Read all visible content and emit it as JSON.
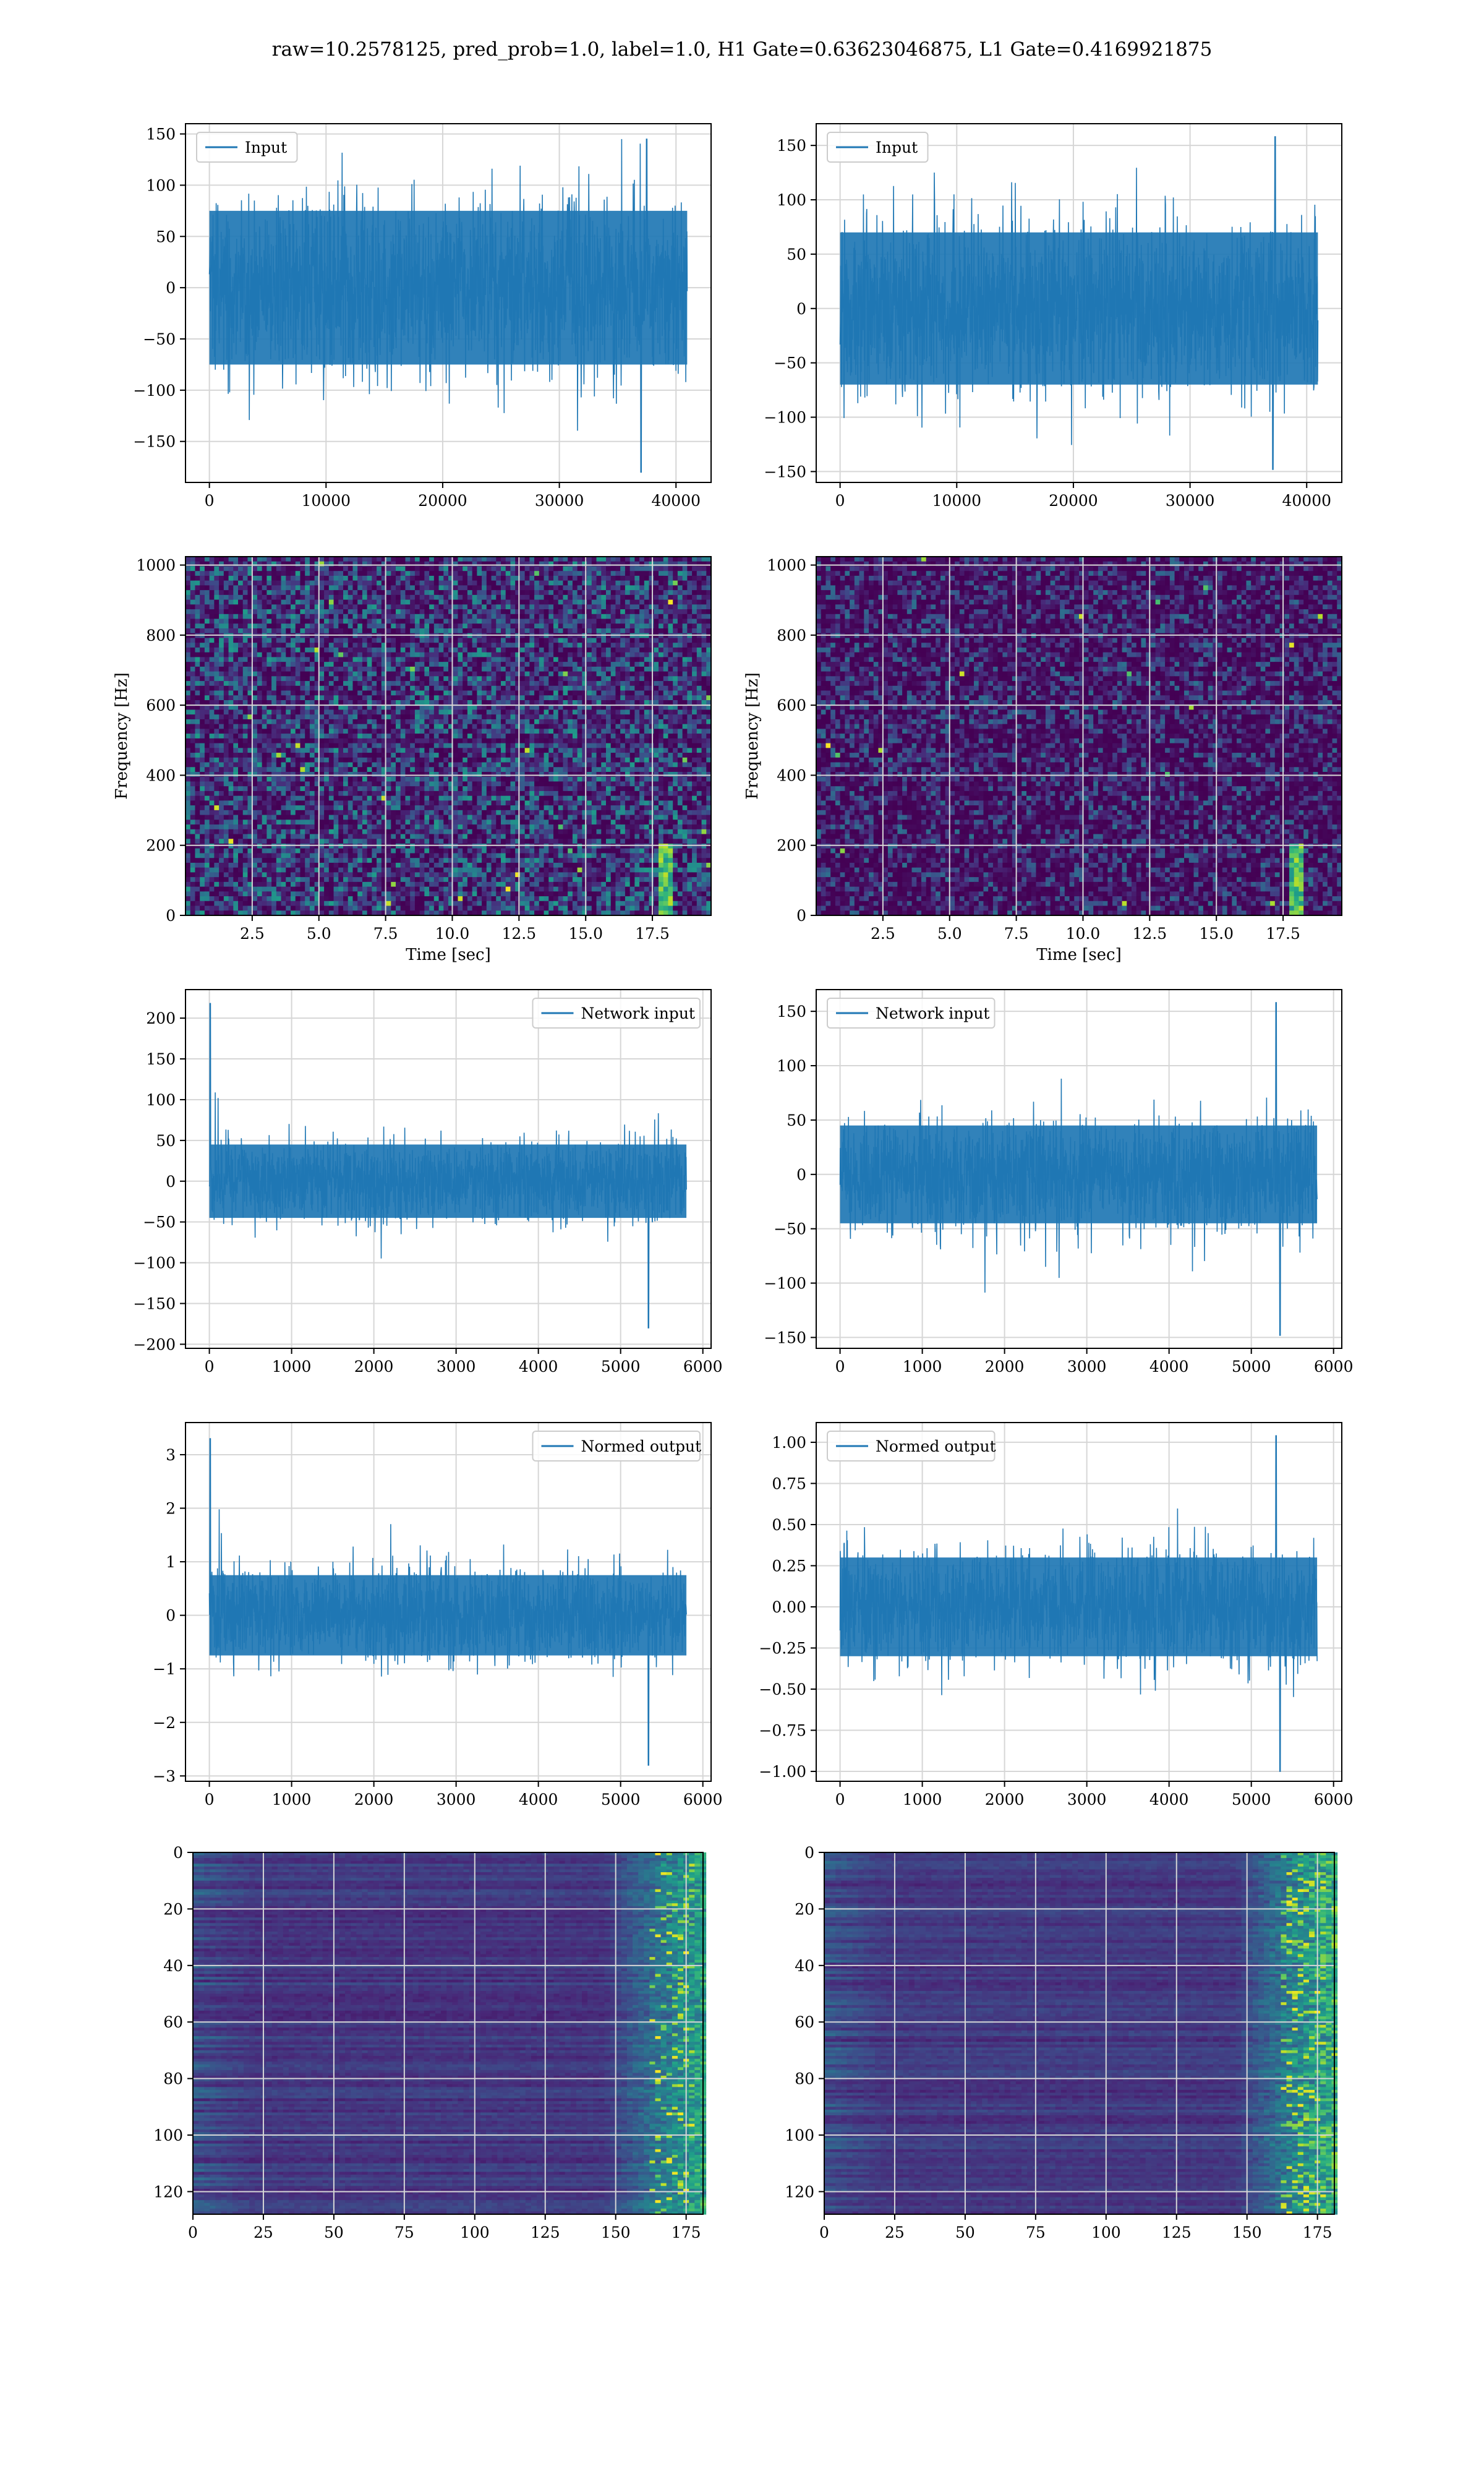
{
  "figure": {
    "title": "raw=10.2578125, pred_prob=1.0, label=1.0, H1 Gate=0.63623046875, L1 Gate=0.4169921875"
  },
  "colors": {
    "line": "#1f77b4",
    "grid": "#d6d6d6",
    "viridis_low": "#440154",
    "viridis_high": "#fde725"
  },
  "chart_data": [
    {
      "id": "h1-input",
      "type": "line",
      "legend": {
        "label": "Input",
        "loc": "upper-left"
      },
      "xlim": [
        -2048,
        43008
      ],
      "ylim": [
        -190,
        160
      ],
      "xticks": [
        0,
        10000,
        20000,
        30000,
        40000
      ],
      "yticks": [
        -150,
        -100,
        -50,
        0,
        50,
        100,
        150
      ],
      "xticklabels": [
        "0",
        "10000",
        "20000",
        "30000",
        "40000"
      ],
      "yticklabels": [
        "−150",
        "−100",
        "−50",
        "0",
        "50",
        "100",
        "150"
      ],
      "signal": {
        "x_start": 0,
        "x_end": 40960,
        "core_band": [
          -75,
          75
        ],
        "max": 145,
        "min": -180,
        "max_at": 37500,
        "min_at": 37000
      },
      "grid": true
    },
    {
      "id": "l1-input",
      "type": "line",
      "legend": {
        "label": "Input",
        "loc": "upper-left"
      },
      "xlim": [
        -2048,
        43008
      ],
      "ylim": [
        -160,
        170
      ],
      "xticks": [
        0,
        10000,
        20000,
        30000,
        40000
      ],
      "yticks": [
        -150,
        -100,
        -50,
        0,
        50,
        100,
        150
      ],
      "xticklabels": [
        "0",
        "10000",
        "20000",
        "30000",
        "40000"
      ],
      "yticklabels": [
        "−150",
        "−100",
        "−50",
        "0",
        "50",
        "100",
        "150"
      ],
      "signal": {
        "x_start": 0,
        "x_end": 40960,
        "core_band": [
          -70,
          70
        ],
        "max": 158,
        "min": -148,
        "max_at": 37300,
        "min_at": 37100
      },
      "grid": true
    },
    {
      "id": "h1-spectrogram",
      "type": "heatmap",
      "xlabel": "Time [sec]",
      "ylabel": "Frequency [Hz]",
      "xlim": [
        0,
        19.7
      ],
      "ylim": [
        0,
        1024
      ],
      "xticks": [
        2.5,
        5.0,
        7.5,
        10.0,
        12.5,
        15.0,
        17.5
      ],
      "yticks": [
        0,
        200,
        400,
        600,
        800,
        1000
      ],
      "xticklabels": [
        "2.5",
        "5.0",
        "7.5",
        "10.0",
        "12.5",
        "15.0",
        "17.5"
      ],
      "yticklabels": [
        "0",
        "200",
        "400",
        "600",
        "800",
        "1000"
      ],
      "colormap": "viridis",
      "grid": true
    },
    {
      "id": "l1-spectrogram",
      "type": "heatmap",
      "xlabel": "Time [sec]",
      "ylabel": "Frequency [Hz]",
      "xlim": [
        0,
        19.7
      ],
      "ylim": [
        0,
        1024
      ],
      "xticks": [
        2.5,
        5.0,
        7.5,
        10.0,
        12.5,
        15.0,
        17.5
      ],
      "yticks": [
        0,
        200,
        400,
        600,
        800,
        1000
      ],
      "xticklabels": [
        "2.5",
        "5.0",
        "7.5",
        "10.0",
        "12.5",
        "15.0",
        "17.5"
      ],
      "yticklabels": [
        "0",
        "200",
        "400",
        "600",
        "800",
        "1000"
      ],
      "colormap": "viridis",
      "grid": true
    },
    {
      "id": "h1-network-input",
      "type": "line",
      "legend": {
        "label": "Network input",
        "loc": "upper-right"
      },
      "xlim": [
        -290,
        6100
      ],
      "ylim": [
        -205,
        235
      ],
      "xticks": [
        0,
        1000,
        2000,
        3000,
        4000,
        5000,
        6000
      ],
      "yticks": [
        -200,
        -150,
        -100,
        -50,
        0,
        50,
        100,
        150,
        200
      ],
      "xticklabels": [
        "0",
        "1000",
        "2000",
        "3000",
        "4000",
        "5000",
        "6000"
      ],
      "yticklabels": [
        "−200",
        "−150",
        "−100",
        "−50",
        "0",
        "50",
        "100",
        "150",
        "200"
      ],
      "signal": {
        "x_start": 0,
        "x_end": 5800,
        "core_band": [
          -45,
          45
        ],
        "max": 218,
        "min": -180,
        "max_at": 10,
        "min_at": 5340
      },
      "grid": true
    },
    {
      "id": "l1-network-input",
      "type": "line",
      "legend": {
        "label": "Network input",
        "loc": "upper-left"
      },
      "xlim": [
        -290,
        6100
      ],
      "ylim": [
        -160,
        170
      ],
      "xticks": [
        0,
        1000,
        2000,
        3000,
        4000,
        5000,
        6000
      ],
      "yticks": [
        -150,
        -100,
        -50,
        0,
        50,
        100,
        150
      ],
      "xticklabels": [
        "0",
        "1000",
        "2000",
        "3000",
        "4000",
        "5000",
        "6000"
      ],
      "yticklabels": [
        "−150",
        "−100",
        "−50",
        "0",
        "50",
        "100",
        "150"
      ],
      "signal": {
        "x_start": 0,
        "x_end": 5800,
        "core_band": [
          -45,
          45
        ],
        "max": 158,
        "min": -148,
        "max_at": 5300,
        "min_at": 5350
      },
      "grid": true
    },
    {
      "id": "h1-normed-output",
      "type": "line",
      "legend": {
        "label": "Normed output",
        "loc": "upper-right"
      },
      "xlim": [
        -290,
        6100
      ],
      "ylim": [
        -3.1,
        3.6
      ],
      "xticks": [
        0,
        1000,
        2000,
        3000,
        4000,
        5000,
        6000
      ],
      "yticks": [
        -3,
        -2,
        -1,
        0,
        1,
        2,
        3
      ],
      "xticklabels": [
        "0",
        "1000",
        "2000",
        "3000",
        "4000",
        "5000",
        "6000"
      ],
      "yticklabels": [
        "−3",
        "−2",
        "−1",
        "0",
        "1",
        "2",
        "3"
      ],
      "signal": {
        "x_start": 0,
        "x_end": 5800,
        "core_band": [
          -0.75,
          0.75
        ],
        "max": 3.3,
        "min": -2.8,
        "max_at": 10,
        "min_at": 5340
      },
      "grid": true
    },
    {
      "id": "l1-normed-output",
      "type": "line",
      "legend": {
        "label": "Normed output",
        "loc": "upper-left"
      },
      "xlim": [
        -290,
        6100
      ],
      "ylim": [
        -1.06,
        1.12
      ],
      "xticks": [
        0,
        1000,
        2000,
        3000,
        4000,
        5000,
        6000
      ],
      "yticks": [
        -1.0,
        -0.75,
        -0.5,
        -0.25,
        0.0,
        0.25,
        0.5,
        0.75,
        1.0
      ],
      "xticklabels": [
        "0",
        "1000",
        "2000",
        "3000",
        "4000",
        "5000",
        "6000"
      ],
      "yticklabels": [
        "−1.00",
        "−0.75",
        "−0.50",
        "−0.25",
        "0.00",
        "0.25",
        "0.50",
        "0.75",
        "1.00"
      ],
      "signal": {
        "x_start": 0,
        "x_end": 5800,
        "core_band": [
          -0.3,
          0.3
        ],
        "max": 1.04,
        "min": -1.0,
        "max_at": 5300,
        "min_at": 5350
      },
      "grid": true
    },
    {
      "id": "h1-feature-map",
      "type": "heatmap",
      "xlim": [
        0,
        181
      ],
      "ylim": [
        128,
        0
      ],
      "xticks": [
        0,
        25,
        50,
        75,
        100,
        125,
        150,
        175
      ],
      "yticks": [
        0,
        20,
        40,
        60,
        80,
        100,
        120
      ],
      "xticklabels": [
        "0",
        "25",
        "50",
        "75",
        "100",
        "125",
        "150",
        "175"
      ],
      "yticklabels": [
        "0",
        "20",
        "40",
        "60",
        "80",
        "100",
        "120"
      ],
      "colormap": "viridis",
      "grid": true
    },
    {
      "id": "l1-feature-map",
      "type": "heatmap",
      "xlim": [
        0,
        181
      ],
      "ylim": [
        128,
        0
      ],
      "xticks": [
        0,
        25,
        50,
        75,
        100,
        125,
        150,
        175
      ],
      "yticks": [
        0,
        20,
        40,
        60,
        80,
        100,
        120
      ],
      "xticklabels": [
        "0",
        "25",
        "50",
        "75",
        "100",
        "125",
        "150",
        "175"
      ],
      "yticklabels": [
        "0",
        "20",
        "40",
        "60",
        "80",
        "100",
        "120"
      ],
      "colormap": "viridis",
      "grid": true
    }
  ]
}
